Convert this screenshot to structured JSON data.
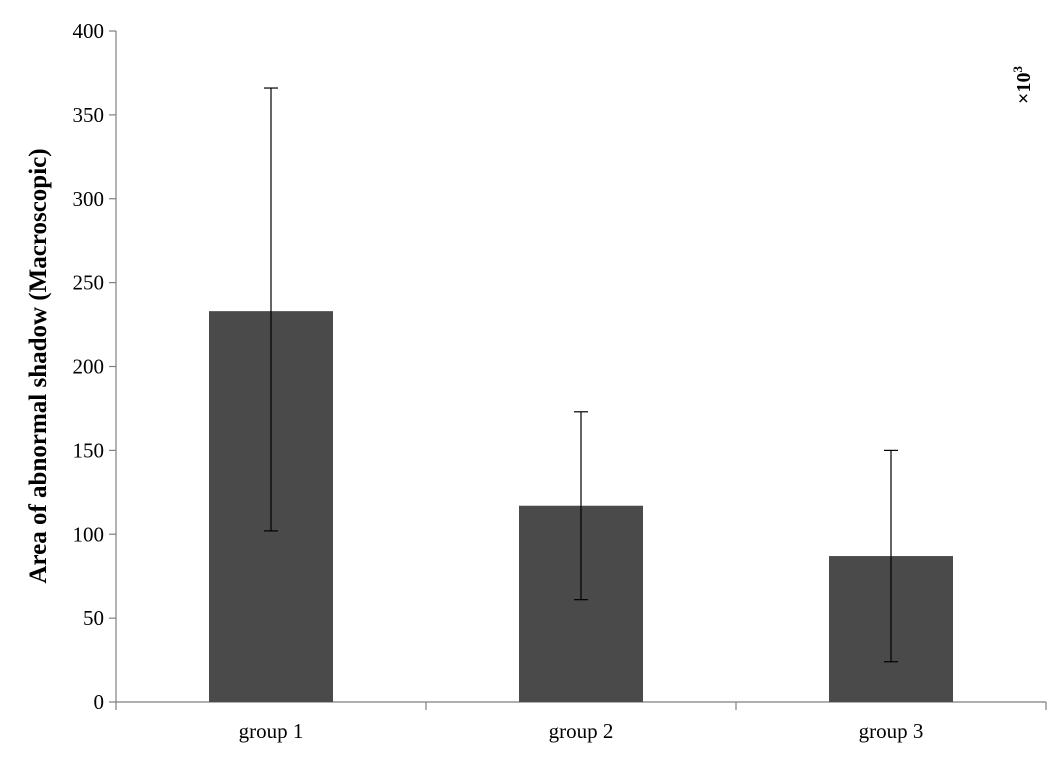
{
  "chart_data": {
    "type": "bar",
    "title": "",
    "xlabel": "",
    "ylabel": "Area of abnormal shadow (Macroscopic)",
    "y_multiplier": {
      "base": "×10",
      "exponent": "3"
    },
    "categories": [
      "group 1",
      "group 2",
      "group 3"
    ],
    "series": [
      {
        "values": [
          233,
          117,
          87
        ],
        "error_upper": [
          366,
          173,
          150
        ],
        "error_lower": [
          102,
          61,
          24
        ],
        "color": "#4a4a4a"
      }
    ],
    "ylim": [
      0,
      400
    ],
    "yticks": [
      0,
      50,
      100,
      150,
      200,
      250,
      300,
      350,
      400
    ],
    "grid": false,
    "legend": "none"
  }
}
